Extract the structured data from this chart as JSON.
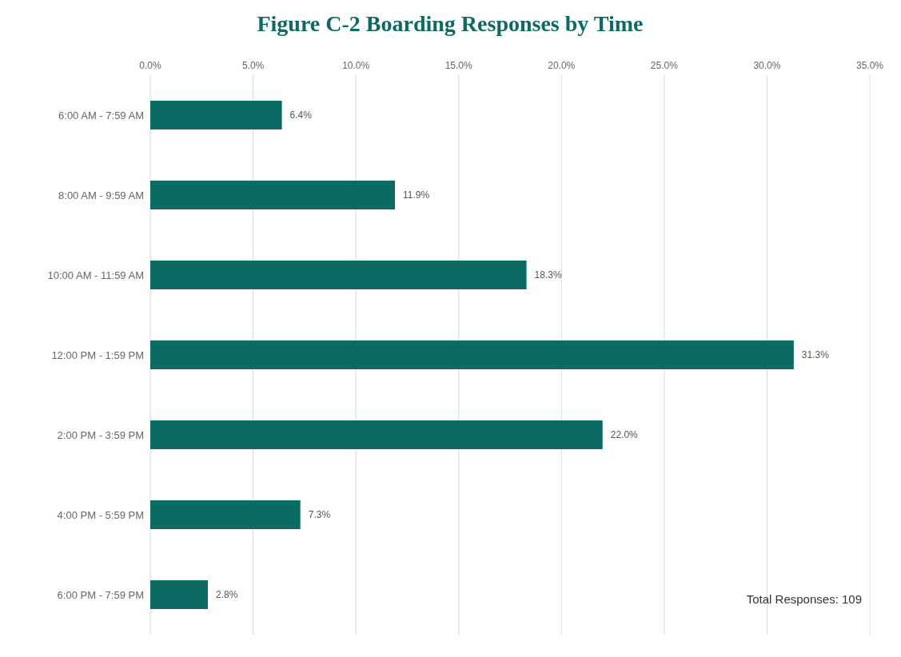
{
  "chart_data": {
    "type": "bar",
    "orientation": "horizontal",
    "title": "Figure C-2 Boarding Responses by Time",
    "categories": [
      "6:00 AM - 7:59 AM",
      "8:00 AM - 9:59 AM",
      "10:00 AM - 11:59 AM",
      "12:00 PM - 1:59 PM",
      "2:00 PM - 3:59 PM",
      "4:00 PM - 5:59 PM",
      "6:00 PM - 7:59 PM"
    ],
    "values": [
      6.4,
      11.9,
      18.3,
      31.3,
      22.0,
      7.3,
      2.8
    ],
    "value_labels": [
      "6.4%",
      "11.9%",
      "18.3%",
      "31.3%",
      "22.0%",
      "7.3%",
      "2.8%"
    ],
    "color": "#0b6a62",
    "xlim": [
      0,
      35
    ],
    "xticks": [
      {
        "value": 0,
        "label": "0.0%"
      },
      {
        "value": 5,
        "label": "5.0%"
      },
      {
        "value": 10,
        "label": "10.0%"
      },
      {
        "value": 15,
        "label": "15.0%"
      },
      {
        "value": 20,
        "label": "20.0%"
      },
      {
        "value": 25,
        "label": "25.0%"
      },
      {
        "value": 30,
        "label": "30.0%"
      },
      {
        "value": 35,
        "label": "35.0%"
      }
    ],
    "grid": "x",
    "annotations": [
      "Total Responses: 109"
    ]
  }
}
